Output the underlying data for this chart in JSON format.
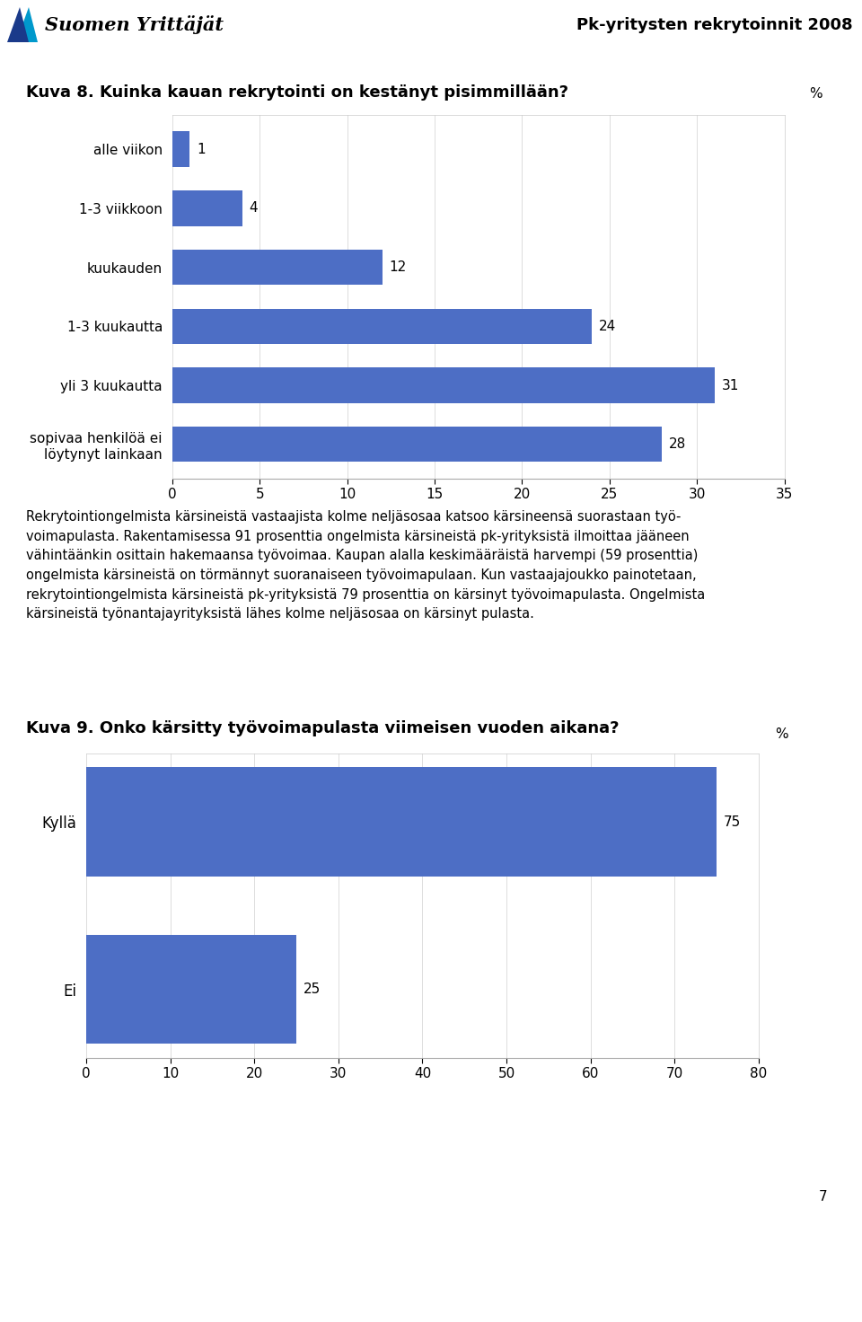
{
  "chart1_title": "Kuva 8. Kuinka kauan rekrytointi on kestänyt pisimmillään?",
  "chart1_categories": [
    "alle viikon",
    "1-3 viikkoon",
    "kuukauden",
    "1-3 kuukautta",
    "yli 3 kuukautta",
    "sopivaa henkilöä ei\nlöytynyt lainkaan"
  ],
  "chart1_values": [
    1,
    4,
    12,
    24,
    31,
    28
  ],
  "chart1_xlim": [
    0,
    35
  ],
  "chart1_xticks": [
    0,
    5,
    10,
    15,
    20,
    25,
    30,
    35
  ],
  "chart1_bar_color": "#4d6ec5",
  "chart2_title": "Kuva 9. Onko kärsitty työvoimapulasta viimeisen vuoden aikana?",
  "chart2_categories": [
    "Kyllä",
    "Ei"
  ],
  "chart2_values": [
    75,
    25
  ],
  "chart2_xlim": [
    0,
    80
  ],
  "chart2_xticks": [
    0,
    10,
    20,
    30,
    40,
    50,
    60,
    70,
    80
  ],
  "chart2_bar_color": "#4d6ec5",
  "header_title": "Pk-yritysten rekrytoinnit 2008",
  "body_text": "Rekrytointiongelmista kärsineistä vastaajista kolme neljäsosaa katsoo kärsineensä suorastaan työ-\nvoimapulasta. Rakentamisessa 91 prosenttia ongelmista kärsineistä pk-yrityksistä ilmoittaa jääneen\nvähintäänkin osittain hakemaansa työvoimaa. Kaupan alalla keskimääräistä harvempi (59 prosenttia)\nongelmista kärsineistä on törmännyt suoranaiseen työvoimapulaan. Kun vastaajajoukko painotetaan,\nrekrytointiongelmista kärsineistä pk-yrityksistä 79 prosenttia on kärsinyt työvoimapulasta. Ongelmista\nkärsineistä työnantajayrityksistä lähes kolme neljäsosaa on kärsinyt pulasta.",
  "page_number": "7",
  "bg_color": "#ffffff",
  "footer_color": "#cc0000",
  "bar_label_fontsize": 11,
  "axis_label_fontsize": 11,
  "title_fontsize": 13,
  "header_line_color": "#888888"
}
